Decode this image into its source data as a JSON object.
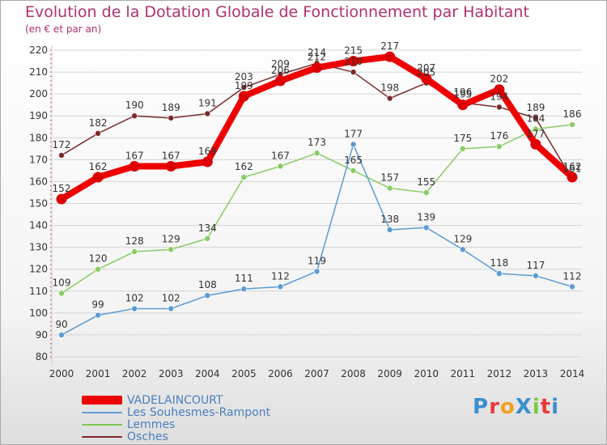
{
  "header": {
    "title": "Evolution de la Dotation Globale de Fonctionnement par Habitant",
    "subtitle": "(en € et par an)",
    "title_color": "#b03070"
  },
  "logo": {
    "text": "ProXiti",
    "colors": [
      "#3a8fd0",
      "#e83a3a",
      "#f0a020",
      "#3a8fd0",
      "#7cc840",
      "#e83a3a",
      "#3a8fd0"
    ]
  },
  "chart_data": {
    "type": "line",
    "x": [
      "2000",
      "2001",
      "2002",
      "2003",
      "2004",
      "2005",
      "2006",
      "2007",
      "2008",
      "2009",
      "2010",
      "2011",
      "2012",
      "2013",
      "2014"
    ],
    "ylim": [
      80,
      220
    ],
    "yticks": [
      80,
      90,
      100,
      110,
      120,
      130,
      140,
      150,
      160,
      170,
      180,
      190,
      200,
      210,
      220
    ],
    "grid": true,
    "legend_position": "bottom-left",
    "series": [
      {
        "name": "Osches",
        "color": "#7a2a2a",
        "legend_color": "#7a2a2a",
        "thick": false,
        "values": [
          172,
          182,
          190,
          189,
          191,
          203,
          209,
          214,
          210,
          198,
          205,
          196,
          194,
          189,
          161
        ],
        "labels": [
          "172",
          "182",
          "190",
          "189",
          "191",
          "203",
          "209",
          "214",
          "210",
          "198",
          "205",
          "196",
          "194",
          "189",
          "161"
        ]
      },
      {
        "name": "Lemmes",
        "color": "#88cc66",
        "legend_color": "#7cc850",
        "thick": false,
        "values": [
          109,
          120,
          128,
          129,
          134,
          162,
          167,
          173,
          165,
          157,
          155,
          175,
          176,
          184,
          186
        ],
        "labels": [
          "109",
          "120",
          "128",
          "129",
          "134",
          "162",
          "167",
          "173",
          "165",
          "157",
          "155",
          "175",
          "176",
          "184",
          "186"
        ]
      },
      {
        "name": "Les Souhesmes-Rampont",
        "color": "#5b9bd5",
        "legend_color": "#5b9bd5",
        "thick": false,
        "values": [
          90,
          99,
          102,
          102,
          108,
          111,
          112,
          119,
          177,
          138,
          139,
          129,
          118,
          117,
          112
        ],
        "labels": [
          "90",
          "99",
          "102",
          "102",
          "108",
          "111",
          "112",
          "119",
          "177",
          "138",
          "139",
          "129",
          "118",
          "117",
          "112"
        ]
      },
      {
        "name": "VADELAINCOURT",
        "color": "#ee0000",
        "legend_color": "#ee0000",
        "thick": true,
        "values": [
          152,
          162,
          167,
          167,
          169,
          199,
          206,
          212,
          215,
          217,
          207,
          195,
          202,
          177,
          162
        ],
        "labels": [
          "152",
          "162",
          "167",
          "167",
          "169",
          "199",
          "206",
          "212",
          "215",
          "217",
          "207",
          "195",
          "202",
          "177",
          "162"
        ]
      }
    ]
  }
}
